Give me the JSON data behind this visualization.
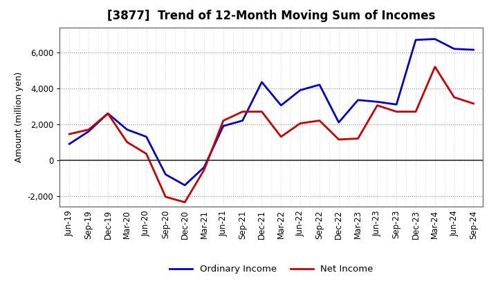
{
  "title": "[3877]  Trend of 12-Month Moving Sum of Incomes",
  "ylabel": "Amount (million yen)",
  "x_labels": [
    "Jun-19",
    "Sep-19",
    "Dec-19",
    "Mar-20",
    "Jun-20",
    "Sep-20",
    "Dec-20",
    "Mar-21",
    "Jun-21",
    "Sep-21",
    "Dec-21",
    "Mar-22",
    "Jun-22",
    "Sep-22",
    "Dec-22",
    "Mar-23",
    "Jun-23",
    "Sep-23",
    "Dec-23",
    "Mar-24",
    "Jun-24",
    "Sep-24"
  ],
  "ordinary_income": [
    900,
    1600,
    2600,
    1700,
    1300,
    -800,
    -1400,
    -400,
    1900,
    2200,
    4350,
    3050,
    3900,
    4200,
    2100,
    3350,
    3250,
    3100,
    6700,
    6750,
    6200,
    6150
  ],
  "net_income": [
    1450,
    1700,
    2600,
    1000,
    350,
    -2050,
    -2350,
    -550,
    2200,
    2700,
    2700,
    1300,
    2050,
    2200,
    1150,
    1200,
    3050,
    2700,
    2700,
    5200,
    3500,
    3150
  ],
  "line_color_ordinary": "#0000CC",
  "line_color_net": "#CC0000",
  "ylim": [
    -2600,
    7400
  ],
  "yticks": [
    -2000,
    0,
    2000,
    4000,
    6000
  ],
  "background_color": "#FFFFFF",
  "plot_bg_color": "#FFFFFF",
  "grid_color_major": "#888888",
  "grid_color_minor": "#CCCCCC",
  "legend_ordinary": "Ordinary Income",
  "legend_net": "Net Income",
  "title_fontsize": 12,
  "axis_fontsize": 9,
  "tick_fontsize": 8.5
}
